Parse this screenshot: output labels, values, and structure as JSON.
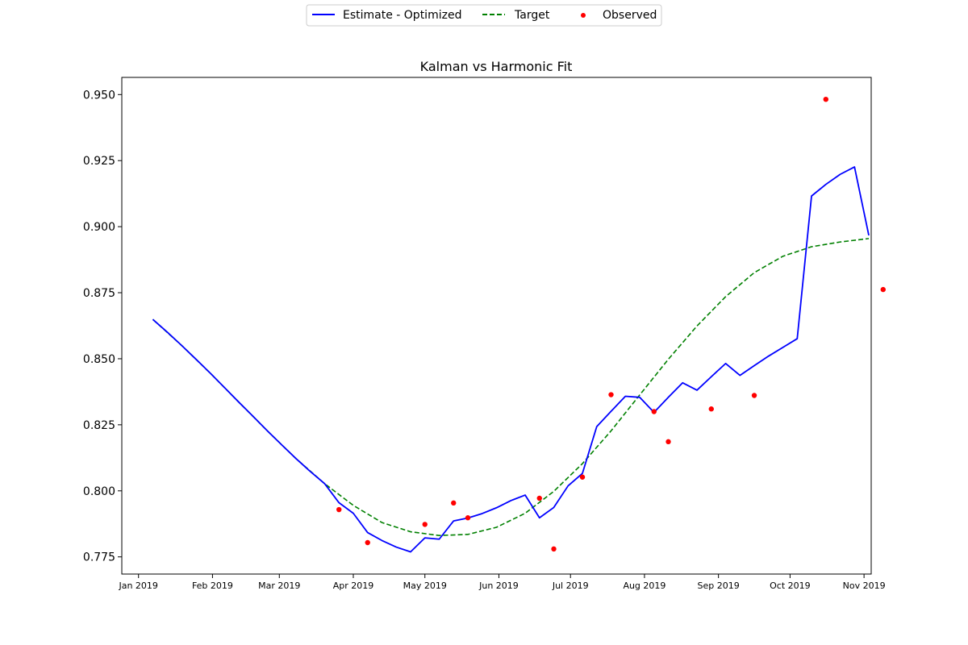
{
  "chart_data": {
    "type": "line",
    "title": "Kalman vs Harmonic Fit",
    "xlabel": "",
    "ylabel": "",
    "x_axis": {
      "type": "date",
      "range": [
        "2018-12-25",
        "2019-11-04"
      ],
      "ticks": [
        {
          "date": "2019-01-01",
          "label": "Jan 2019"
        },
        {
          "date": "2019-02-01",
          "label": "Feb 2019"
        },
        {
          "date": "2019-03-01",
          "label": "Mar 2019"
        },
        {
          "date": "2019-04-01",
          "label": "Apr 2019"
        },
        {
          "date": "2019-05-01",
          "label": "May 2019"
        },
        {
          "date": "2019-06-01",
          "label": "Jun 2019"
        },
        {
          "date": "2019-07-01",
          "label": "Jul 2019"
        },
        {
          "date": "2019-08-01",
          "label": "Aug 2019"
        },
        {
          "date": "2019-09-01",
          "label": "Sep 2019"
        },
        {
          "date": "2019-10-01",
          "label": "Oct 2019"
        },
        {
          "date": "2019-11-01",
          "label": "Nov 2019"
        }
      ]
    },
    "y_axis": {
      "range": [
        0.7685,
        0.9565
      ],
      "ticks": [
        0.775,
        0.8,
        0.825,
        0.85,
        0.875,
        0.9,
        0.925,
        0.95
      ],
      "tick_labels": [
        "0.775",
        "0.800",
        "0.825",
        "0.850",
        "0.875",
        "0.900",
        "0.925",
        "0.950"
      ]
    },
    "grid": false,
    "legend": {
      "placement": "top-center",
      "entries": [
        {
          "label": "Estimate - Optimized",
          "style": "solid-line",
          "color": "#0000ff"
        },
        {
          "label": "Target",
          "style": "dashed-line",
          "color": "#008000"
        },
        {
          "label": "Observed",
          "style": "marker",
          "color": "#ff0000"
        }
      ]
    },
    "series": [
      {
        "name": "Estimate - Optimized",
        "kind": "line",
        "color": "#0000ff",
        "points": [
          [
            "2019-01-07",
            0.8649
          ],
          [
            "2019-01-13",
            0.8601
          ],
          [
            "2019-01-19",
            0.8551
          ],
          [
            "2019-01-25",
            0.8499
          ],
          [
            "2019-01-31",
            0.8446
          ],
          [
            "2019-02-06",
            0.8391
          ],
          [
            "2019-02-12",
            0.8336
          ],
          [
            "2019-02-18",
            0.8282
          ],
          [
            "2019-02-24",
            0.8227
          ],
          [
            "2019-03-02",
            0.8174
          ],
          [
            "2019-03-08",
            0.8122
          ],
          [
            "2019-03-14",
            0.8073
          ],
          [
            "2019-03-20",
            0.8027
          ],
          [
            "2019-03-26",
            0.7955
          ],
          [
            "2019-04-01",
            0.7915
          ],
          [
            "2019-04-07",
            0.7842
          ],
          [
            "2019-04-13",
            0.7812
          ],
          [
            "2019-04-19",
            0.7787
          ],
          [
            "2019-04-25",
            0.7769
          ],
          [
            "2019-05-01",
            0.7822
          ],
          [
            "2019-05-07",
            0.7817
          ],
          [
            "2019-05-13",
            0.7886
          ],
          [
            "2019-05-19",
            0.7897
          ],
          [
            "2019-05-25",
            0.7914
          ],
          [
            "2019-05-31",
            0.7936
          ],
          [
            "2019-06-06",
            0.7963
          ],
          [
            "2019-06-12",
            0.7984
          ],
          [
            "2019-06-18",
            0.7898
          ],
          [
            "2019-06-24",
            0.7937
          ],
          [
            "2019-06-30",
            0.8019
          ],
          [
            "2019-07-06",
            0.8066
          ],
          [
            "2019-07-12",
            0.8243
          ],
          [
            "2019-07-18",
            0.8301
          ],
          [
            "2019-07-24",
            0.8358
          ],
          [
            "2019-07-30",
            0.8354
          ],
          [
            "2019-08-05",
            0.8297
          ],
          [
            "2019-08-11",
            0.8354
          ],
          [
            "2019-08-17",
            0.8409
          ],
          [
            "2019-08-23",
            0.8381
          ],
          [
            "2019-08-29",
            0.8432
          ],
          [
            "2019-09-04",
            0.8482
          ],
          [
            "2019-09-10",
            0.8437
          ],
          [
            "2019-09-16",
            0.8474
          ],
          [
            "2019-09-22",
            0.851
          ],
          [
            "2019-09-28",
            0.8543
          ],
          [
            "2019-10-04",
            0.8576
          ],
          [
            "2019-10-10",
            0.9116
          ],
          [
            "2019-10-16",
            0.916
          ],
          [
            "2019-10-22",
            0.9198
          ],
          [
            "2019-10-28",
            0.9226
          ],
          [
            "2019-11-03",
            0.8967
          ]
        ]
      },
      {
        "name": "Target",
        "kind": "dashed-line",
        "color": "#008000",
        "points": [
          [
            "2019-01-07",
            0.8649
          ],
          [
            "2019-01-19",
            0.8551
          ],
          [
            "2019-01-31",
            0.8446
          ],
          [
            "2019-02-12",
            0.8336
          ],
          [
            "2019-02-24",
            0.8227
          ],
          [
            "2019-03-08",
            0.8122
          ],
          [
            "2019-03-20",
            0.8027
          ],
          [
            "2019-04-01",
            0.7945
          ],
          [
            "2019-04-13",
            0.788
          ],
          [
            "2019-04-25",
            0.7845
          ],
          [
            "2019-05-07",
            0.7831
          ],
          [
            "2019-05-19",
            0.7835
          ],
          [
            "2019-05-31",
            0.7862
          ],
          [
            "2019-06-12",
            0.7915
          ],
          [
            "2019-06-24",
            0.7998
          ],
          [
            "2019-07-06",
            0.8103
          ],
          [
            "2019-07-18",
            0.8227
          ],
          [
            "2019-07-30",
            0.8363
          ],
          [
            "2019-08-11",
            0.8498
          ],
          [
            "2019-08-23",
            0.8624
          ],
          [
            "2019-09-04",
            0.8735
          ],
          [
            "2019-09-16",
            0.8826
          ],
          [
            "2019-09-28",
            0.8888
          ],
          [
            "2019-10-10",
            0.8924
          ],
          [
            "2019-10-22",
            0.8942
          ],
          [
            "2019-11-03",
            0.8955
          ]
        ]
      },
      {
        "name": "Observed",
        "kind": "scatter",
        "color": "#ff0000",
        "points": [
          [
            "2019-03-26",
            0.7929
          ],
          [
            "2019-04-07",
            0.7804
          ],
          [
            "2019-05-01",
            0.7873
          ],
          [
            "2019-05-13",
            0.7954
          ],
          [
            "2019-05-19",
            0.7898
          ],
          [
            "2019-06-18",
            0.7972
          ],
          [
            "2019-06-24",
            0.778
          ],
          [
            "2019-07-06",
            0.8052
          ],
          [
            "2019-07-18",
            0.8364
          ],
          [
            "2019-08-05",
            0.83
          ],
          [
            "2019-08-11",
            0.8186
          ],
          [
            "2019-08-29",
            0.831
          ],
          [
            "2019-09-16",
            0.8361
          ],
          [
            "2019-10-16",
            0.9482
          ],
          [
            "2019-11-09",
            0.8762
          ]
        ]
      }
    ]
  }
}
